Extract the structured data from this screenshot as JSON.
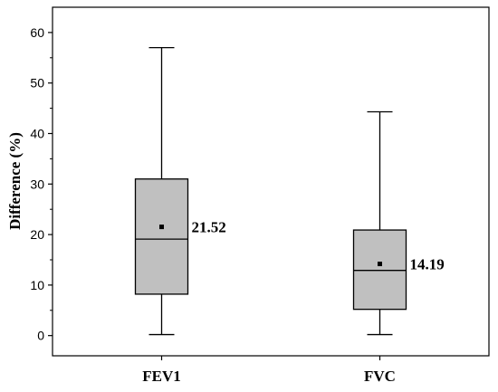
{
  "chart_data": {
    "type": "box",
    "title": "",
    "xlabel": "",
    "ylabel": "Difference (%)",
    "ylim": [
      -4,
      65
    ],
    "yticks": [
      0,
      10,
      20,
      30,
      40,
      50,
      60
    ],
    "grid": false,
    "legend": "none",
    "categories": [
      "FEV1",
      "FVC"
    ],
    "boxes": [
      {
        "category": "FEV1",
        "min": 0.2,
        "q1": 8.2,
        "median": 19.1,
        "q3": 31.0,
        "max": 57.0,
        "mean": 21.52,
        "mean_label": "21.52"
      },
      {
        "category": "FVC",
        "min": 0.2,
        "q1": 5.2,
        "median": 12.9,
        "q3": 20.9,
        "max": 44.3,
        "mean": 14.19,
        "mean_label": "14.19"
      }
    ],
    "colors": {
      "box_fill": "#c0c0c0",
      "stroke": "#000000"
    }
  }
}
